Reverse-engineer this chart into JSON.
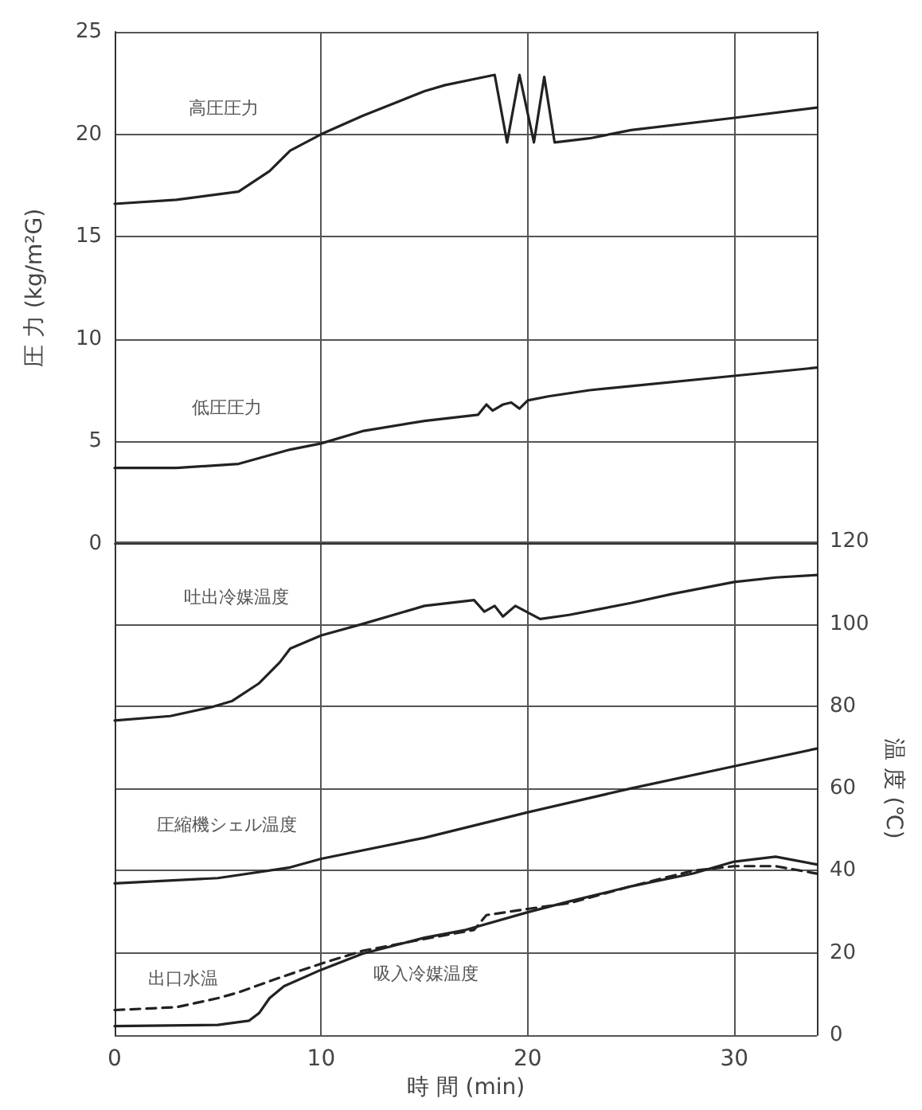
{
  "chart_data": {
    "type": "line",
    "xlabel": "時 間 (min)",
    "ylabel": "圧 力 (kg/m²G)",
    "y2label": "温 度 (℃)",
    "xlim": [
      0,
      34
    ],
    "xticks": [
      0,
      10,
      20,
      30
    ],
    "ylim": [
      -24,
      25
    ],
    "yticks": [
      0,
      5,
      10,
      15,
      20,
      25
    ],
    "y2lim": [
      0,
      244
    ],
    "y2ticks": [
      0,
      20,
      40,
      60,
      80,
      100,
      120
    ],
    "grid": true,
    "legend": false,
    "marker": "none",
    "series": [
      {
        "name": "高圧圧力",
        "color": "#222222",
        "line_style": "solid",
        "x": [
          0,
          3,
          6,
          7.5,
          8.5,
          10,
          12,
          15,
          16,
          18.4,
          19,
          19.6,
          20.3,
          20.8,
          21.3,
          23,
          25,
          30,
          34
        ],
        "values": [
          16.6,
          16.8,
          17.2,
          18.2,
          19.2,
          20.0,
          20.9,
          22.1,
          22.4,
          22.9,
          19.6,
          22.9,
          19.6,
          22.8,
          19.6,
          19.8,
          20.2,
          20.8,
          21.3
        ]
      },
      {
        "name": "低圧圧力",
        "color": "#222222",
        "line_style": "solid",
        "x": [
          0,
          3,
          6,
          8.5,
          10,
          12,
          15,
          17.6,
          18,
          18.3,
          18.8,
          19.2,
          19.6,
          20,
          21,
          23,
          25,
          30,
          34
        ],
        "values": [
          3.7,
          3.7,
          3.9,
          4.6,
          4.9,
          5.5,
          6.0,
          6.3,
          6.8,
          6.5,
          6.8,
          6.9,
          6.6,
          7.0,
          7.2,
          7.5,
          7.7,
          8.2,
          8.6
        ]
      },
      {
        "name": "吐出冷媒温度",
        "color": "#222222",
        "line_style": "solid",
        "axis": "y2",
        "x": [
          0,
          2.7,
          4.7,
          5.7,
          7,
          8,
          8.5,
          10,
          12,
          15,
          17.4,
          17.9,
          18.4,
          18.8,
          19.4,
          20.6,
          22,
          25,
          27,
          30,
          32,
          34
        ],
        "values": [
          76.5,
          77.6,
          79.8,
          81.3,
          85.6,
          90.7,
          94,
          97.2,
          100,
          104.4,
          105.8,
          103,
          104.4,
          101.8,
          104.4,
          101.2,
          102.2,
          105.1,
          107.3,
          110.2,
          111.3,
          111.9
        ]
      },
      {
        "name": "圧縮機シェル温度",
        "color": "#222222",
        "line_style": "solid",
        "axis": "y2",
        "x": [
          0,
          5,
          8.5,
          10,
          15,
          20,
          25,
          30,
          34
        ],
        "values": [
          36.9,
          38.2,
          40.8,
          42.9,
          48,
          54.2,
          60,
          65.4,
          69.7
        ]
      },
      {
        "name": "出口水温",
        "color": "#222222",
        "line_style": "dashed",
        "axis": "y2",
        "x": [
          0,
          3,
          5,
          6,
          8,
          10,
          12,
          15,
          17.4,
          18,
          20,
          22,
          25,
          28,
          30,
          32,
          34
        ],
        "values": [
          6.1,
          6.8,
          9.0,
          10.4,
          14,
          17.4,
          20.5,
          23.4,
          25.6,
          29.2,
          30.7,
          32.1,
          36.2,
          40,
          41.1,
          41.1,
          39.3
        ]
      },
      {
        "name": "吸入冷媒温度",
        "color": "#222222",
        "line_style": "solid",
        "axis": "y2",
        "x": [
          0,
          5,
          6.5,
          7,
          7.5,
          8.2,
          10,
          12,
          15,
          17,
          20,
          22,
          25,
          28,
          30,
          32,
          34
        ],
        "values": [
          2.2,
          2.5,
          3.5,
          5.4,
          9,
          11.9,
          15.9,
          19.8,
          23.7,
          25.6,
          29.9,
          32.5,
          36.2,
          39.3,
          42.2,
          43.4,
          41.5
        ]
      }
    ]
  }
}
